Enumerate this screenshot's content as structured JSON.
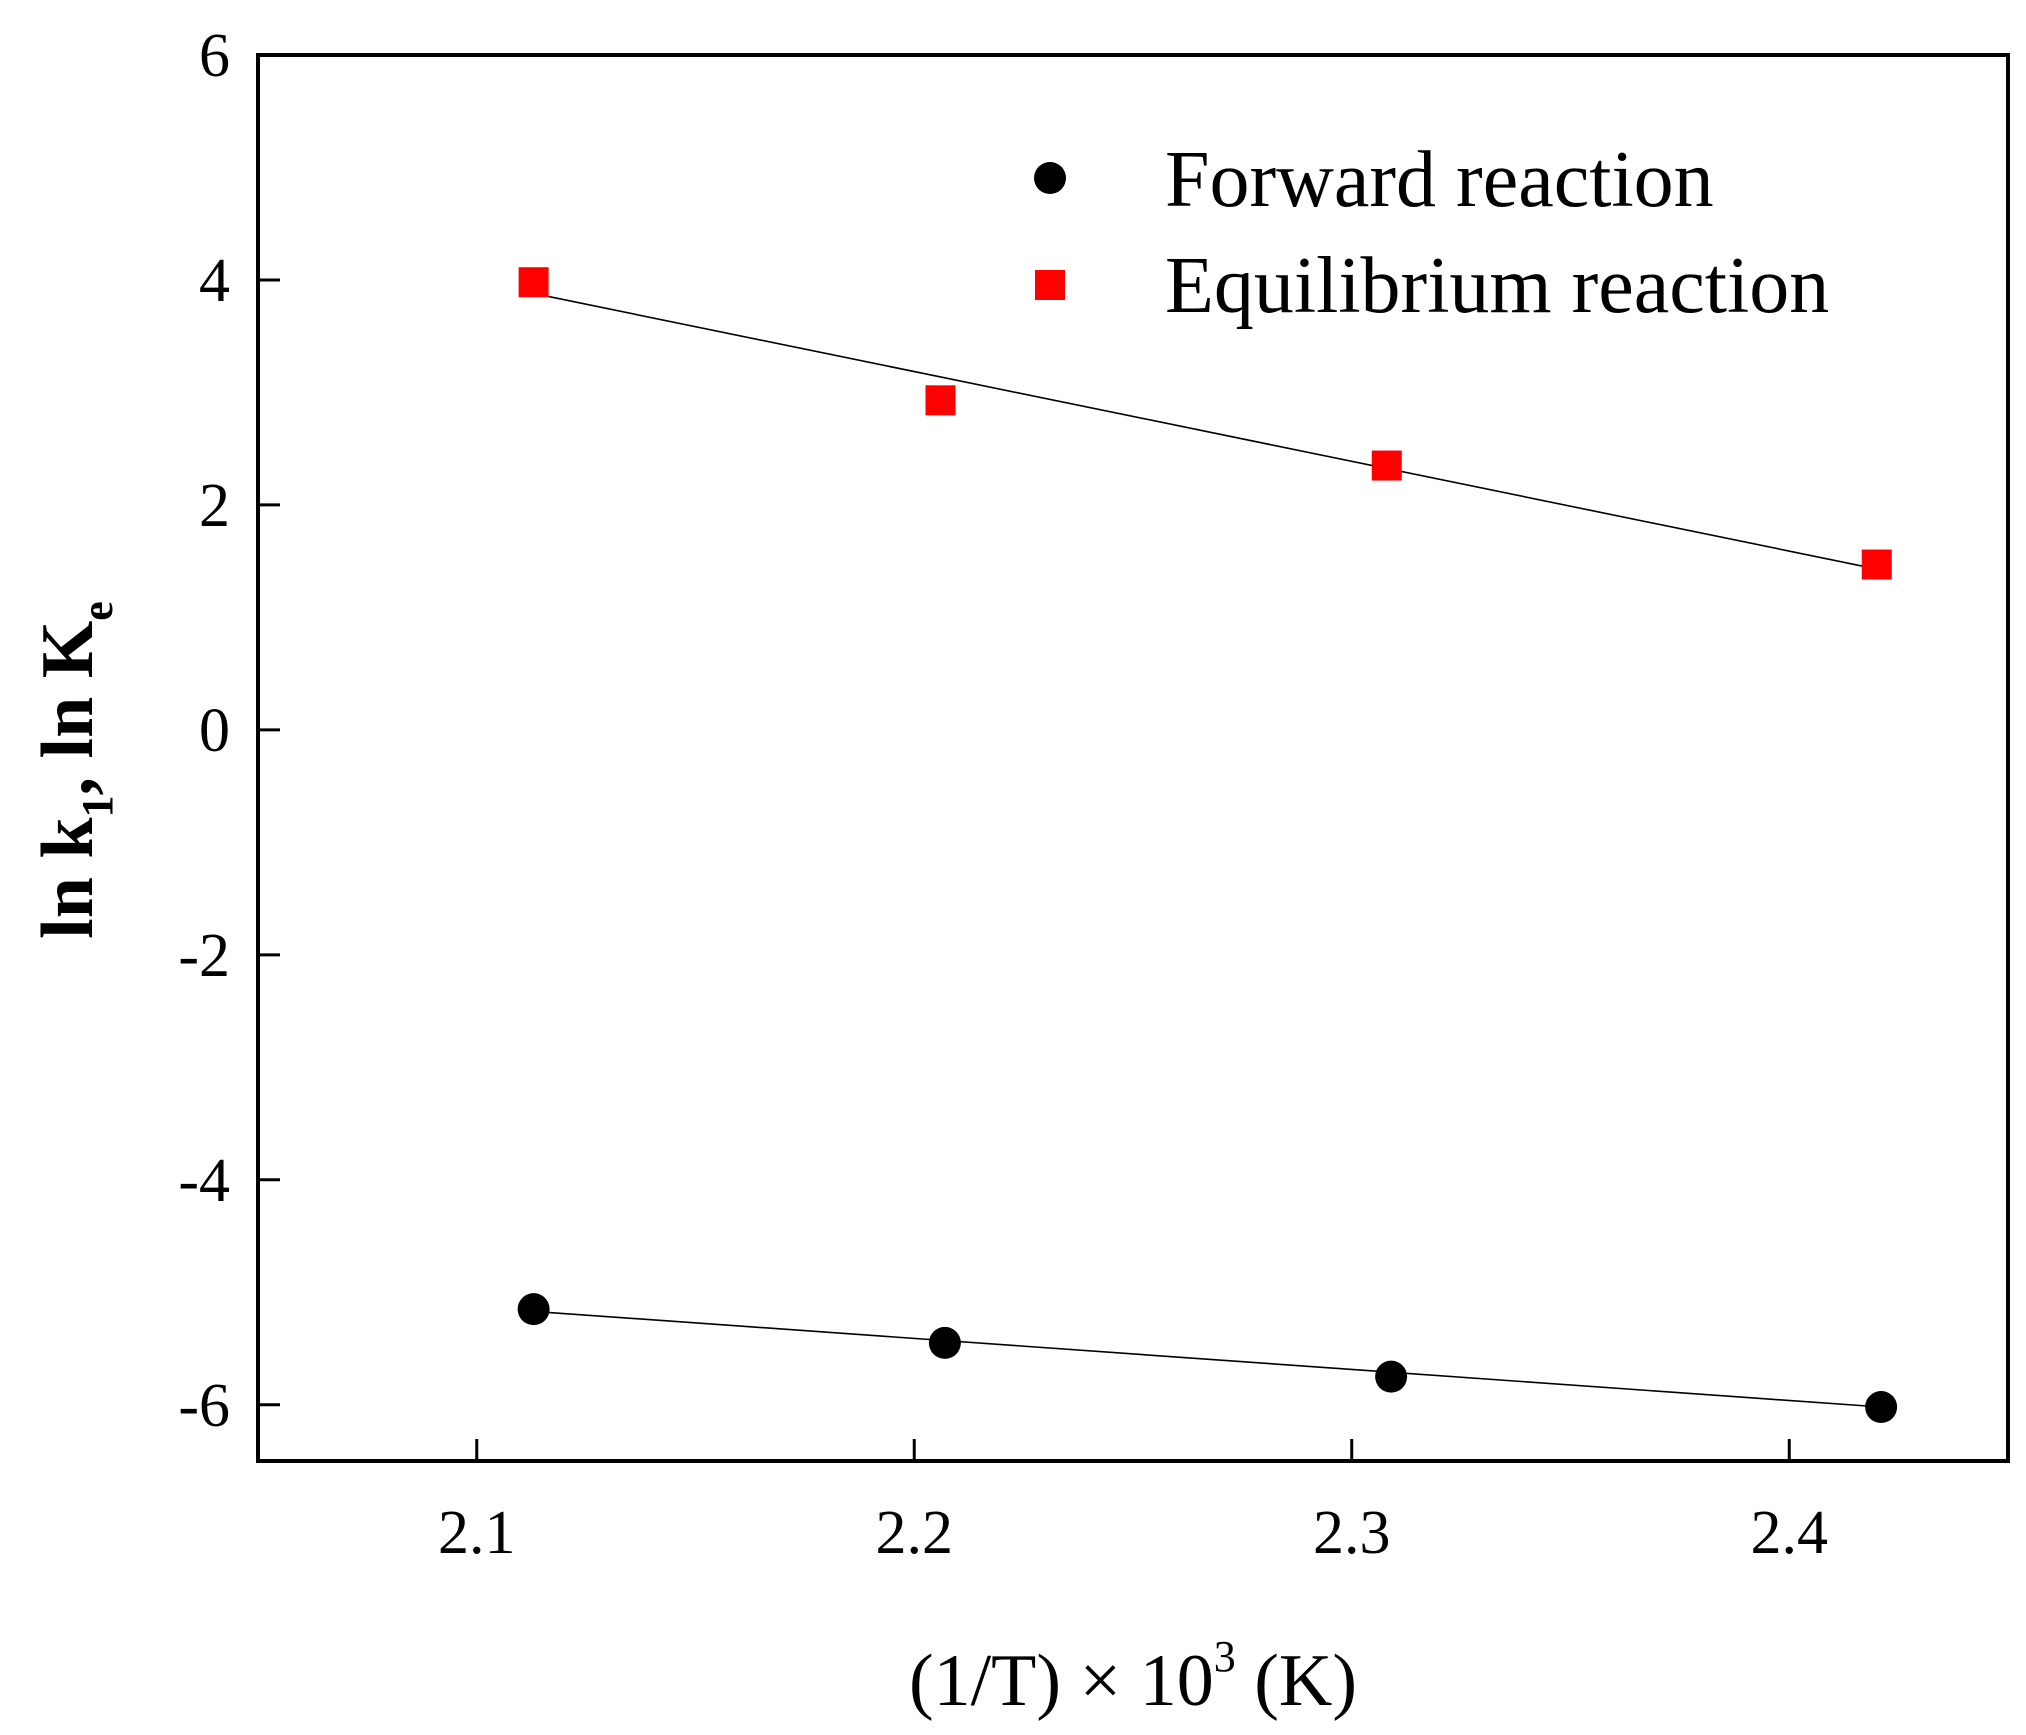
{
  "chart_data": {
    "type": "scatter",
    "title": "",
    "xlabel": "(1/T) × 10³ (K)",
    "ylabel": "ln k₁, ln Kₑ",
    "xlim": [
      2.05,
      2.45
    ],
    "ylim": [
      -6.5,
      6
    ],
    "x_ticks": [
      2.1,
      2.2,
      2.3,
      2.4
    ],
    "y_ticks": [
      -6,
      -4,
      -2,
      0,
      2,
      4,
      6
    ],
    "x_tick_labels": [
      "2.1",
      "2.2",
      "2.3",
      "2.4"
    ],
    "y_tick_labels": [
      "-6",
      "-4",
      "-2",
      "0",
      "2",
      "4",
      "6"
    ],
    "grid": false,
    "legend_position": "top-right",
    "series": [
      {
        "name": "Forward reaction",
        "marker": "circle",
        "color": "#000000",
        "x": [
          2.113,
          2.207,
          2.309,
          2.421
        ],
        "y": [
          -5.15,
          -5.45,
          -5.75,
          -6.02
        ],
        "fit": {
          "x": [
            2.113,
            2.421
          ],
          "y": [
            -5.17,
            -6.02
          ]
        }
      },
      {
        "name": "Equilibrium reaction",
        "marker": "square",
        "color": "#ff0000",
        "x": [
          2.113,
          2.206,
          2.308,
          2.42
        ],
        "y": [
          3.98,
          2.93,
          2.35,
          1.47
        ],
        "fit": {
          "x": [
            2.113,
            2.42
          ],
          "y": [
            3.88,
            1.43
          ]
        }
      }
    ]
  },
  "axis_titles": {
    "x": {
      "part1": "(1/T) × 10",
      "sup": "3",
      "part2": " (K)"
    },
    "y": {
      "part1": "ln k",
      "sub1": "1",
      "part2": ", ln K",
      "sub2": "e"
    }
  },
  "colors": {
    "axis": "#000000",
    "forward": "#000000",
    "equilibrium": "#ff0000",
    "fit_line": "#000000"
  }
}
